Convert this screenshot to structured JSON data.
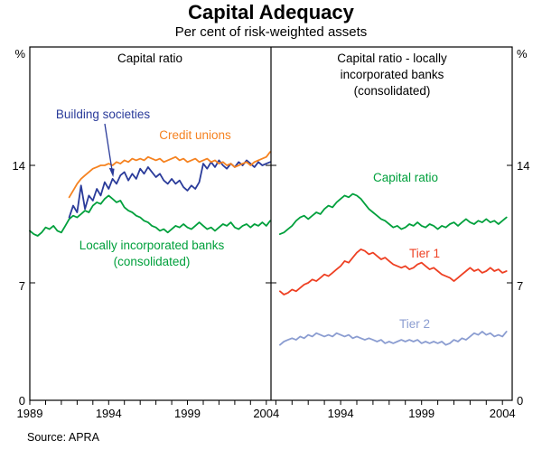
{
  "title": "Capital Adequacy",
  "subtitle": "Per cent of risk-weighted assets",
  "source": "Source: APRA",
  "chart_data": {
    "type": "line",
    "title": "Capital Adequacy",
    "subtitle": "Per cent of risk-weighted assets",
    "ylabel": "%",
    "ylim": [
      0,
      21
    ],
    "yticks": [
      0,
      7,
      14
    ],
    "grid": false,
    "legend_position": "inline-labels",
    "panels": [
      {
        "title": "Capital ratio",
        "x_domain": [
          1989,
          2004.3
        ],
        "xticks": [
          {
            "year": 1989,
            "label": "1989"
          },
          {
            "year": 1994,
            "label": "1994"
          },
          {
            "year": 1999,
            "label": "1999"
          },
          {
            "year": 2004,
            "label": "2004"
          }
        ],
        "series": [
          {
            "name": "Locally incorporated banks (consolidated)",
            "label_lines": [
              "Locally incorporated banks",
              "(consolidated)"
            ],
            "color": "#00a03c",
            "x_start": 1989.0,
            "x_step": 0.25,
            "values": [
              10.1,
              9.9,
              9.8,
              10.0,
              10.3,
              10.2,
              10.4,
              10.1,
              10.0,
              10.4,
              10.8,
              11.0,
              10.9,
              11.1,
              11.3,
              11.2,
              11.6,
              11.8,
              11.7,
              12.0,
              12.2,
              12.0,
              11.8,
              11.9,
              11.5,
              11.3,
              11.2,
              11.0,
              10.9,
              10.7,
              10.6,
              10.4,
              10.3,
              10.1,
              10.2,
              10.0,
              10.2,
              10.4,
              10.3,
              10.5,
              10.3,
              10.2,
              10.4,
              10.6,
              10.4,
              10.2,
              10.3,
              10.1,
              10.3,
              10.5,
              10.4,
              10.6,
              10.3,
              10.2,
              10.4,
              10.5,
              10.3,
              10.5,
              10.4,
              10.6,
              10.4,
              10.7
            ]
          },
          {
            "name": "Building societies",
            "label_lines": [
              "Building societies"
            ],
            "color": "#2a3b9a",
            "x_start": 1991.5,
            "x_step": 0.25,
            "values": [
              10.9,
              11.6,
              11.2,
              12.8,
              11.4,
              12.2,
              11.9,
              12.6,
              12.2,
              13.0,
              12.6,
              13.2,
              12.9,
              13.4,
              13.6,
              13.1,
              13.5,
              13.2,
              13.8,
              13.5,
              13.9,
              13.6,
              13.3,
              13.5,
              13.1,
              12.9,
              13.2,
              12.9,
              13.1,
              12.7,
              12.5,
              12.8,
              12.6,
              13.0,
              14.1,
              13.8,
              14.2,
              13.9,
              14.3,
              14.0,
              13.8,
              14.1,
              13.9,
              14.2,
              14.0,
              14.3,
              14.1,
              13.9,
              14.2,
              14.0,
              14.1,
              14.2
            ]
          },
          {
            "name": "Credit unions",
            "label_lines": [
              "Credit unions"
            ],
            "color": "#f58220",
            "x_start": 1991.5,
            "x_step": 0.25,
            "values": [
              12.1,
              12.5,
              12.9,
              13.2,
              13.4,
              13.6,
              13.8,
              13.9,
              14.0,
              14.0,
              14.1,
              14.0,
              14.2,
              14.1,
              14.3,
              14.2,
              14.4,
              14.3,
              14.4,
              14.3,
              14.5,
              14.4,
              14.3,
              14.4,
              14.2,
              14.3,
              14.4,
              14.5,
              14.3,
              14.4,
              14.2,
              14.3,
              14.4,
              14.2,
              14.3,
              14.4,
              14.2,
              14.3,
              14.1,
              14.2,
              14.0,
              14.1,
              13.9,
              14.0,
              14.1,
              14.2,
              14.0,
              14.2,
              14.3,
              14.4,
              14.5,
              14.8
            ]
          }
        ]
      },
      {
        "title": "Capital ratio - locally incorporated banks (consolidated)",
        "title_lines": [
          "Capital ratio - locally",
          "incorporated banks",
          "(consolidated)"
        ],
        "x_domain": [
          1989.7,
          2004.6
        ],
        "xticks": [
          {
            "year": 1994,
            "label": "1994"
          },
          {
            "year": 1999,
            "label": "1999"
          },
          {
            "year": 2004,
            "label": "2004"
          }
        ],
        "series": [
          {
            "name": "Capital ratio",
            "label_lines": [
              "Capital ratio"
            ],
            "color": "#00a03c",
            "x_start": 1990.25,
            "x_step": 0.25,
            "values": [
              9.9,
              10.0,
              10.2,
              10.4,
              10.7,
              10.9,
              11.0,
              10.8,
              11.0,
              11.2,
              11.1,
              11.4,
              11.6,
              11.5,
              11.8,
              12.0,
              12.2,
              12.1,
              12.3,
              12.2,
              12.0,
              11.7,
              11.4,
              11.2,
              11.0,
              10.8,
              10.7,
              10.5,
              10.3,
              10.4,
              10.2,
              10.3,
              10.5,
              10.4,
              10.6,
              10.4,
              10.3,
              10.5,
              10.4,
              10.2,
              10.4,
              10.3,
              10.5,
              10.6,
              10.4,
              10.6,
              10.8,
              10.6,
              10.5,
              10.7,
              10.6,
              10.8,
              10.6,
              10.7,
              10.5,
              10.7,
              10.9
            ]
          },
          {
            "name": "Tier 1",
            "label_lines": [
              "Tier 1"
            ],
            "color": "#ee4023",
            "x_start": 1990.25,
            "x_step": 0.25,
            "values": [
              6.5,
              6.3,
              6.4,
              6.6,
              6.5,
              6.7,
              6.9,
              7.0,
              7.2,
              7.1,
              7.3,
              7.5,
              7.4,
              7.6,
              7.8,
              8.0,
              8.3,
              8.2,
              8.5,
              8.8,
              9.0,
              8.9,
              8.7,
              8.8,
              8.6,
              8.4,
              8.5,
              8.3,
              8.1,
              8.0,
              7.9,
              8.0,
              7.8,
              7.9,
              8.1,
              8.2,
              8.0,
              7.8,
              7.9,
              7.7,
              7.5,
              7.4,
              7.3,
              7.1,
              7.3,
              7.5,
              7.7,
              7.9,
              7.7,
              7.8,
              7.6,
              7.7,
              7.9,
              7.7,
              7.8,
              7.6,
              7.7
            ]
          },
          {
            "name": "Tier 2",
            "label_lines": [
              "Tier 2"
            ],
            "color": "#8b9dd1",
            "x_start": 1990.25,
            "x_step": 0.25,
            "values": [
              3.3,
              3.5,
              3.6,
              3.7,
              3.6,
              3.8,
              3.7,
              3.9,
              3.8,
              4.0,
              3.9,
              3.8,
              3.9,
              3.8,
              4.0,
              3.9,
              3.8,
              3.9,
              3.7,
              3.8,
              3.7,
              3.6,
              3.7,
              3.6,
              3.5,
              3.6,
              3.4,
              3.5,
              3.4,
              3.5,
              3.6,
              3.5,
              3.6,
              3.5,
              3.6,
              3.4,
              3.5,
              3.4,
              3.5,
              3.4,
              3.5,
              3.3,
              3.4,
              3.6,
              3.5,
              3.7,
              3.6,
              3.8,
              4.0,
              3.9,
              4.1,
              3.9,
              4.0,
              3.8,
              3.9,
              3.8,
              4.1
            ]
          }
        ]
      }
    ]
  }
}
